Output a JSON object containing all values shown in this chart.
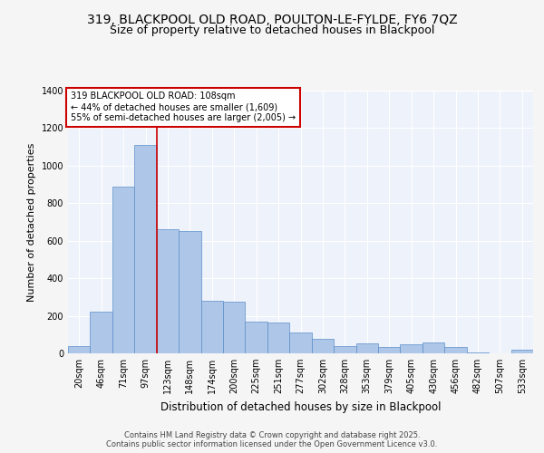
{
  "title_line1": "319, BLACKPOOL OLD ROAD, POULTON-LE-FYLDE, FY6 7QZ",
  "title_line2": "Size of property relative to detached houses in Blackpool",
  "xlabel": "Distribution of detached houses by size in Blackpool",
  "ylabel": "Number of detached properties",
  "categories": [
    "20sqm",
    "46sqm",
    "71sqm",
    "97sqm",
    "123sqm",
    "148sqm",
    "174sqm",
    "200sqm",
    "225sqm",
    "251sqm",
    "277sqm",
    "302sqm",
    "328sqm",
    "353sqm",
    "379sqm",
    "405sqm",
    "430sqm",
    "456sqm",
    "482sqm",
    "507sqm",
    "533sqm"
  ],
  "values": [
    40,
    220,
    890,
    1110,
    660,
    650,
    280,
    275,
    170,
    165,
    110,
    75,
    40,
    55,
    35,
    50,
    60,
    35,
    5,
    0,
    20
  ],
  "bar_color": "#aec6e8",
  "bar_edge_color": "#5b8fc9",
  "vline_color": "#cc0000",
  "vline_pos": 3.5,
  "annotation_title": "319 BLACKPOOL OLD ROAD: 108sqm",
  "annotation_line1": "← 44% of detached houses are smaller (1,609)",
  "annotation_line2": "55% of semi-detached houses are larger (2,005) →",
  "annotation_box_color": "#ffffff",
  "annotation_box_edge": "#cc0000",
  "ylim": [
    0,
    1400
  ],
  "yticks": [
    0,
    200,
    400,
    600,
    800,
    1000,
    1200,
    1400
  ],
  "background_color": "#eef2fb",
  "grid_color": "#ffffff",
  "fig_bg_color": "#f5f5f5",
  "footer_line1": "Contains HM Land Registry data © Crown copyright and database right 2025.",
  "footer_line2": "Contains public sector information licensed under the Open Government Licence v3.0."
}
